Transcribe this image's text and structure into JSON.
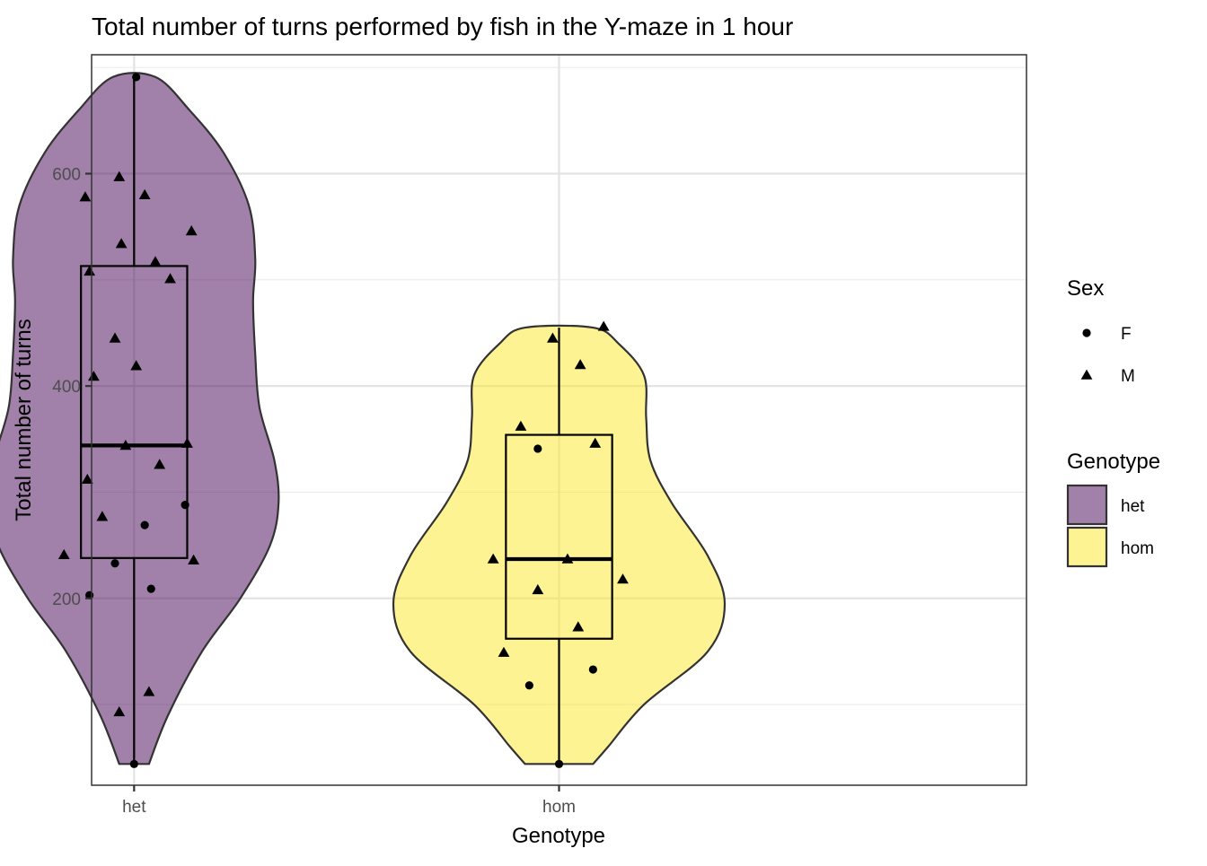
{
  "chart_data": {
    "type": "violin",
    "title": "Total number of turns performed by fish in the Y-maze in 1 hour",
    "xlabel": "Genotype",
    "ylabel": "Total number of turns",
    "ylim": [
      24,
      712
    ],
    "yticks": [
      200,
      400,
      600
    ],
    "grid": true,
    "legend_position": "right",
    "categories": [
      "het",
      "hom"
    ],
    "groups": [
      {
        "name": "het",
        "color": "#440154",
        "violin_profile": [
          {
            "y": 44,
            "w": 0.07
          },
          {
            "y": 90,
            "w": 0.16
          },
          {
            "y": 150,
            "w": 0.32
          },
          {
            "y": 200,
            "w": 0.5
          },
          {
            "y": 250,
            "w": 0.64
          },
          {
            "y": 290,
            "w": 0.68
          },
          {
            "y": 330,
            "w": 0.66
          },
          {
            "y": 380,
            "w": 0.59
          },
          {
            "y": 430,
            "w": 0.57
          },
          {
            "y": 480,
            "w": 0.56
          },
          {
            "y": 520,
            "w": 0.57
          },
          {
            "y": 570,
            "w": 0.54
          },
          {
            "y": 620,
            "w": 0.42
          },
          {
            "y": 660,
            "w": 0.26
          },
          {
            "y": 691,
            "w": 0.1
          }
        ],
        "box": {
          "min": 44,
          "q1": 238,
          "median": 344,
          "q3": 513,
          "max": 691
        },
        "points": [
          {
            "x": 0.01,
            "y": 691,
            "sex": "F"
          },
          {
            "x": -0.23,
            "y": 578,
            "sex": "M"
          },
          {
            "x": -0.07,
            "y": 597,
            "sex": "M"
          },
          {
            "x": 0.05,
            "y": 580,
            "sex": "M"
          },
          {
            "x": 0.27,
            "y": 546,
            "sex": "M"
          },
          {
            "x": -0.06,
            "y": 534,
            "sex": "M"
          },
          {
            "x": -0.21,
            "y": 508,
            "sex": "M"
          },
          {
            "x": 0.1,
            "y": 517,
            "sex": "M"
          },
          {
            "x": 0.17,
            "y": 501,
            "sex": "M"
          },
          {
            "x": -0.09,
            "y": 445,
            "sex": "M"
          },
          {
            "x": 0.01,
            "y": 419,
            "sex": "M"
          },
          {
            "x": -0.19,
            "y": 409,
            "sex": "M"
          },
          {
            "x": 0.25,
            "y": 346,
            "sex": "M"
          },
          {
            "x": -0.04,
            "y": 344,
            "sex": "M"
          },
          {
            "x": 0.12,
            "y": 326,
            "sex": "M"
          },
          {
            "x": -0.22,
            "y": 312,
            "sex": "M"
          },
          {
            "x": 0.24,
            "y": 288,
            "sex": "F"
          },
          {
            "x": -0.15,
            "y": 277,
            "sex": "M"
          },
          {
            "x": 0.05,
            "y": 269,
            "sex": "F"
          },
          {
            "x": -0.33,
            "y": 241,
            "sex": "M"
          },
          {
            "x": 0.28,
            "y": 236,
            "sex": "M"
          },
          {
            "x": -0.09,
            "y": 233,
            "sex": "F"
          },
          {
            "x": 0.08,
            "y": 209,
            "sex": "F"
          },
          {
            "x": -0.21,
            "y": 203,
            "sex": "F"
          },
          {
            "x": 0.07,
            "y": 112,
            "sex": "M"
          },
          {
            "x": -0.07,
            "y": 93,
            "sex": "M"
          },
          {
            "x": 0.0,
            "y": 44,
            "sex": "F"
          }
        ]
      },
      {
        "name": "hom",
        "color": "#FDE725",
        "violin_profile": [
          {
            "y": 44,
            "w": 0.16
          },
          {
            "y": 60,
            "w": 0.23
          },
          {
            "y": 100,
            "w": 0.4
          },
          {
            "y": 150,
            "w": 0.7
          },
          {
            "y": 195,
            "w": 0.78
          },
          {
            "y": 240,
            "w": 0.7
          },
          {
            "y": 290,
            "w": 0.53
          },
          {
            "y": 330,
            "w": 0.43
          },
          {
            "y": 370,
            "w": 0.41
          },
          {
            "y": 410,
            "w": 0.4
          },
          {
            "y": 440,
            "w": 0.28
          },
          {
            "y": 455,
            "w": 0.16
          }
        ],
        "box": {
          "min": 44,
          "q1": 162,
          "median": 237,
          "q3": 354,
          "max": 455
        },
        "points": [
          {
            "x": -0.03,
            "y": 445,
            "sex": "M"
          },
          {
            "x": 0.21,
            "y": 456,
            "sex": "M"
          },
          {
            "x": 0.1,
            "y": 420,
            "sex": "M"
          },
          {
            "x": -0.18,
            "y": 362,
            "sex": "M"
          },
          {
            "x": 0.17,
            "y": 346,
            "sex": "M"
          },
          {
            "x": -0.1,
            "y": 341,
            "sex": "F"
          },
          {
            "x": 0.04,
            "y": 237,
            "sex": "M"
          },
          {
            "x": -0.31,
            "y": 237,
            "sex": "M"
          },
          {
            "x": 0.3,
            "y": 218,
            "sex": "M"
          },
          {
            "x": -0.1,
            "y": 208,
            "sex": "M"
          },
          {
            "x": 0.09,
            "y": 173,
            "sex": "M"
          },
          {
            "x": -0.26,
            "y": 149,
            "sex": "M"
          },
          {
            "x": 0.16,
            "y": 133,
            "sex": "F"
          },
          {
            "x": -0.14,
            "y": 118,
            "sex": "F"
          },
          {
            "x": 0.0,
            "y": 44,
            "sex": "F"
          }
        ]
      }
    ],
    "legends": [
      {
        "title": "Sex",
        "entries": [
          {
            "label": "F",
            "shape": "circle"
          },
          {
            "label": "M",
            "shape": "triangle"
          }
        ]
      },
      {
        "title": "Genotype",
        "entries": [
          {
            "label": "het",
            "color": "#440154"
          },
          {
            "label": "hom",
            "color": "#FDE725"
          }
        ]
      }
    ]
  }
}
